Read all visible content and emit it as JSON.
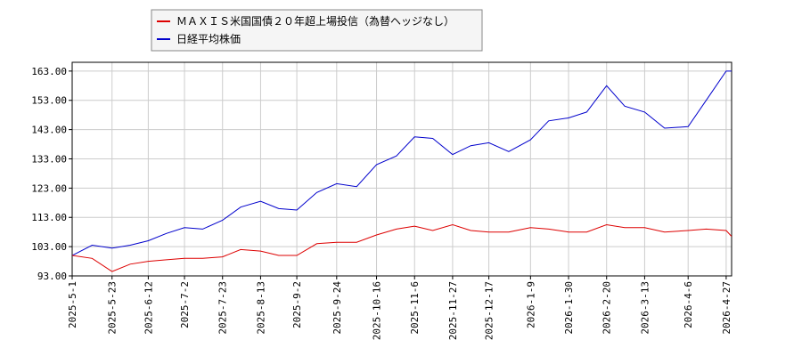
{
  "colors": {
    "series_1": "#dd0000",
    "series_2": "#0000cc",
    "grid": "#cccccc",
    "axis": "#000000",
    "legend_border": "#888888",
    "legend_bg": "#f5f5f5"
  },
  "chart_data": {
    "type": "line",
    "title": "",
    "xlabel": "",
    "ylabel": "",
    "ylim": [
      93,
      166
    ],
    "yticks": [
      93.0,
      103.0,
      113.0,
      123.0,
      133.0,
      143.0,
      153.0,
      163.0
    ],
    "ytick_labels": [
      "93.00",
      "103.00",
      "113.00",
      "123.00",
      "133.00",
      "143.00",
      "153.00",
      "163.00"
    ],
    "grid": true,
    "legend_position": "top-left",
    "x_tick_labels": [
      "2025-5-1",
      "2025-5-23",
      "2025-6-12",
      "2025-7-2",
      "2025-7-23",
      "2025-8-13",
      "2025-9-2",
      "2025-9-24",
      "2025-10-16",
      "2025-11-6",
      "2025-11-27",
      "2025-12-17",
      "2026-1-9",
      "2026-1-30",
      "2026-2-20",
      "2026-3-13",
      "2026-4-6",
      "2026-4-27"
    ],
    "x": [
      "2025-5-1",
      "2025-5-12",
      "2025-5-23",
      "2025-6-2",
      "2025-6-12",
      "2025-6-22",
      "2025-7-2",
      "2025-7-12",
      "2025-7-23",
      "2025-8-2",
      "2025-8-13",
      "2025-8-23",
      "2025-9-2",
      "2025-9-13",
      "2025-9-24",
      "2025-10-5",
      "2025-10-16",
      "2025-10-27",
      "2025-11-6",
      "2025-11-16",
      "2025-11-27",
      "2025-12-7",
      "2025-12-17",
      "2025-12-28",
      "2026-1-9",
      "2026-1-19",
      "2026-1-30",
      "2026-2-9",
      "2026-2-20",
      "2026-3-2",
      "2026-3-13",
      "2026-3-24",
      "2026-4-6",
      "2026-4-16",
      "2026-4-27",
      "2026-4-30"
    ],
    "series": [
      {
        "name": "ＭＡＸＩＳ米国国債２０年超上場投信（為替ヘッジなし）",
        "color": "#dd0000",
        "values": [
          100.0,
          99.0,
          94.5,
          97.0,
          98.0,
          98.5,
          99.0,
          99.0,
          99.5,
          102.0,
          101.5,
          100.0,
          100.0,
          104.0,
          104.5,
          104.5,
          107.0,
          109.0,
          110.0,
          108.5,
          110.5,
          108.5,
          108.0,
          108.0,
          109.5,
          109.0,
          108.0,
          108.0,
          110.5,
          109.5,
          109.5,
          108.0,
          108.5,
          109.0,
          108.5,
          106.5
        ]
      },
      {
        "name": "日経平均株価",
        "color": "#0000cc",
        "values": [
          100.0,
          103.5,
          102.5,
          103.5,
          105.0,
          107.5,
          109.5,
          109.0,
          112.0,
          116.5,
          118.5,
          116.0,
          115.5,
          121.5,
          124.5,
          123.5,
          131.0,
          134.0,
          140.5,
          140.0,
          134.5,
          137.5,
          138.5,
          135.5,
          139.5,
          146.0,
          147.0,
          149.0,
          158.0,
          151.0,
          149.0,
          143.5,
          144.0,
          153.0,
          163.0,
          163.0
        ]
      }
    ]
  }
}
